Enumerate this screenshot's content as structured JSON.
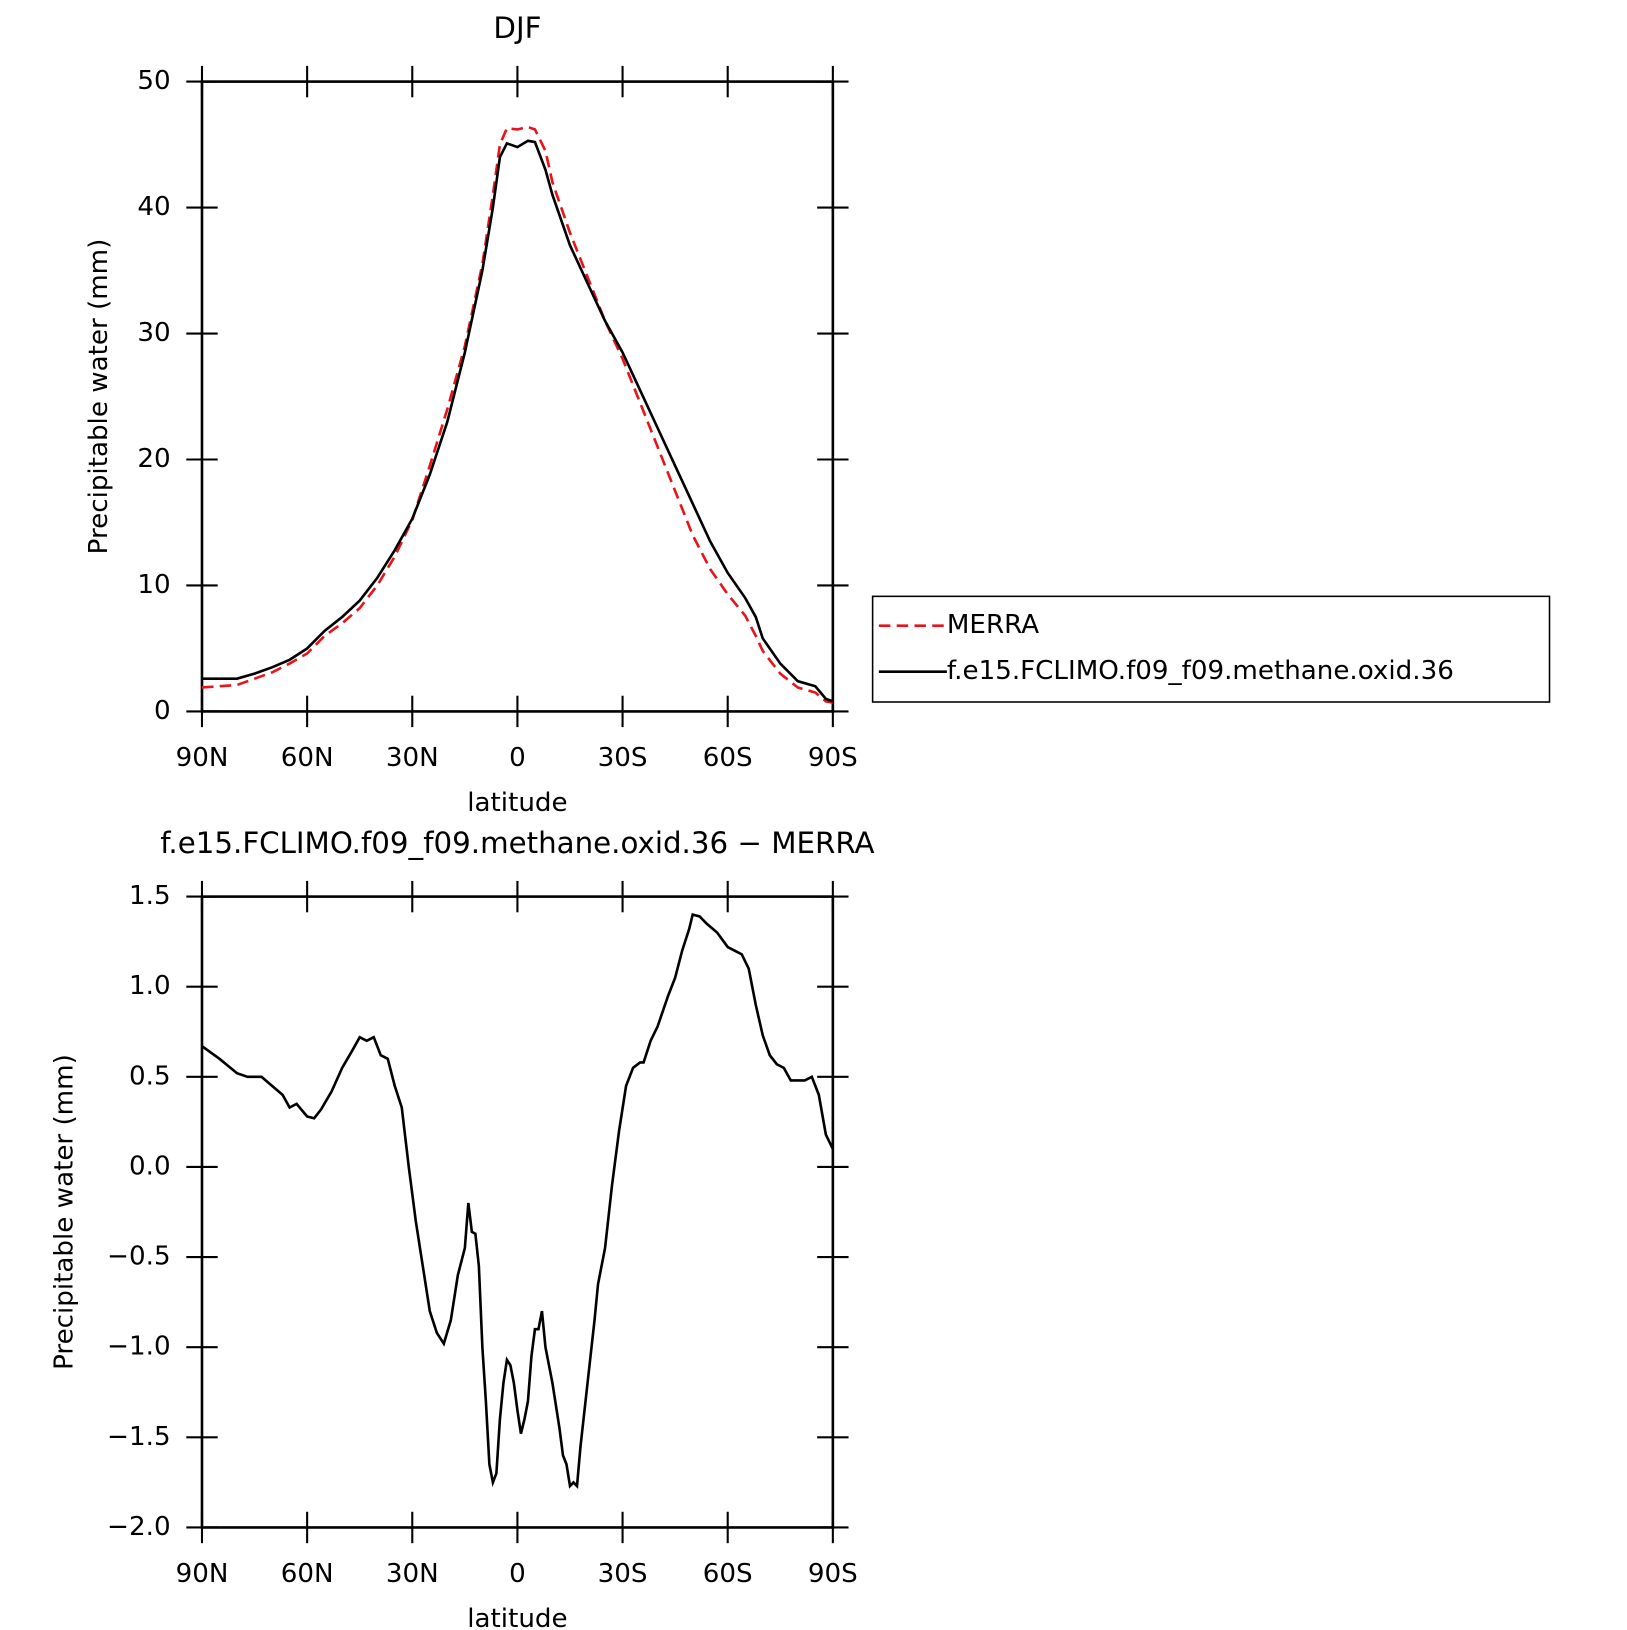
{
  "chart_data": [
    {
      "type": "line",
      "title": "DJF",
      "xlabel": "latitude",
      "ylabel": "Precipitable water (mm)",
      "x": [
        90,
        85,
        80,
        75,
        70,
        65,
        60,
        55,
        50,
        45,
        40,
        35,
        30,
        25,
        20,
        15,
        10,
        7,
        5,
        3,
        0,
        -3,
        -5,
        -8,
        -10,
        -15,
        -20,
        -25,
        -30,
        -35,
        -40,
        -45,
        -50,
        -55,
        -60,
        -65,
        -68,
        -70,
        -75,
        -80,
        -85,
        -88,
        -90
      ],
      "series": [
        {
          "name": "MERRA",
          "color": "#e8141c",
          "linestyle": "dashed",
          "values": [
            1.9,
            2.0,
            2.1,
            2.6,
            3.1,
            3.8,
            4.6,
            6.0,
            7.0,
            8.2,
            10,
            12.3,
            15.2,
            19.5,
            24,
            29,
            35.5,
            41,
            45,
            46.3,
            46.2,
            46.4,
            46.2,
            44.5,
            42,
            38,
            34.5,
            31,
            28,
            24.5,
            21,
            17.5,
            14,
            11.3,
            9.3,
            7.6,
            6,
            4.8,
            3.0,
            1.9,
            1.5,
            0.8,
            0.7
          ]
        },
        {
          "name": "f.e15.FCLIMO.f09_f09.methane.oxid.36",
          "color": "#000000",
          "linestyle": "solid",
          "values": [
            2.6,
            2.6,
            2.6,
            3.0,
            3.5,
            4.1,
            5.0,
            6.4,
            7.5,
            8.8,
            10.6,
            12.8,
            15.3,
            18.8,
            23,
            28.5,
            35,
            40,
            44,
            45.1,
            44.8,
            45.3,
            45.2,
            43,
            41,
            37,
            34,
            31,
            28.5,
            25.5,
            22.5,
            19.5,
            16.5,
            13.5,
            11,
            9,
            7.5,
            5.8,
            3.8,
            2.4,
            2.0,
            1.0,
            0.8
          ]
        }
      ],
      "xlim": [
        90,
        -90
      ],
      "xticks": [
        {
          "value": 90,
          "label": "90N"
        },
        {
          "value": 60,
          "label": "60N"
        },
        {
          "value": 30,
          "label": "30N"
        },
        0,
        {
          "value": -30,
          "label": "30S"
        },
        {
          "value": -60,
          "label": "60S"
        },
        {
          "value": -90,
          "label": "90S"
        }
      ],
      "ylim": [
        0,
        50
      ],
      "yticks": [
        0,
        10,
        20,
        30,
        40,
        50
      ],
      "legend": "right"
    },
    {
      "type": "line",
      "title": "f.e15.FCLIMO.f09_f09.methane.oxid.36 − MERRA",
      "xlabel": "latitude",
      "ylabel": "Precipitable water (mm)",
      "x": [
        90,
        85,
        80,
        77,
        73,
        70,
        67,
        65,
        63,
        60,
        58,
        56,
        53,
        50,
        47,
        45,
        43,
        41,
        39,
        37,
        35,
        33,
        31,
        29,
        27,
        25,
        23,
        21,
        19,
        17,
        15,
        14,
        13,
        12,
        11,
        10,
        9,
        8,
        7,
        6,
        5,
        4,
        3,
        2,
        1,
        0,
        -1,
        -2,
        -3,
        -4,
        -5,
        -6,
        -7,
        -8,
        -10,
        -12,
        -13,
        -14,
        -15,
        -16,
        -17,
        -18,
        -20,
        -22,
        -23,
        -25,
        -27,
        -29,
        -31,
        -33,
        -35,
        -36,
        -38,
        -40,
        -43,
        -45,
        -47,
        -49,
        -50,
        -52,
        -54,
        -57,
        -60,
        -62,
        -64,
        -66,
        -68,
        -70,
        -72,
        -74,
        -76,
        -78,
        -80,
        -82,
        -84,
        -86,
        -88,
        -90
      ],
      "values": [
        0.67,
        0.6,
        0.52,
        0.5,
        0.5,
        0.45,
        0.4,
        0.33,
        0.35,
        0.28,
        0.27,
        0.32,
        0.42,
        0.55,
        0.65,
        0.72,
        0.7,
        0.72,
        0.62,
        0.6,
        0.45,
        0.33,
        0.0,
        -0.3,
        -0.55,
        -0.8,
        -0.92,
        -0.98,
        -0.85,
        -0.6,
        -0.45,
        -0.2,
        -0.36,
        -0.37,
        -0.55,
        -1.0,
        -1.3,
        -1.65,
        -1.75,
        -1.7,
        -1.4,
        -1.2,
        -1.07,
        -1.1,
        -1.2,
        -1.35,
        -1.48,
        -1.4,
        -1.3,
        -1.05,
        -0.9,
        -0.9,
        -0.8,
        -1.0,
        -1.2,
        -1.45,
        -1.6,
        -1.65,
        -1.77,
        -1.75,
        -1.77,
        -1.55,
        -1.2,
        -0.85,
        -0.65,
        -0.45,
        -0.1,
        0.2,
        0.45,
        0.55,
        0.58,
        0.58,
        0.7,
        0.78,
        0.95,
        1.05,
        1.2,
        1.32,
        1.4,
        1.39,
        1.35,
        1.3,
        1.22,
        1.2,
        1.18,
        1.1,
        0.9,
        0.73,
        0.62,
        0.57,
        0.55,
        0.48,
        0.48,
        0.48,
        0.5,
        0.4,
        0.18,
        0.1
      ],
      "color": "#000000",
      "xlim": [
        90,
        -90
      ],
      "xticks": [
        {
          "value": 90,
          "label": "90N"
        },
        {
          "value": 60,
          "label": "60N"
        },
        {
          "value": 30,
          "label": "30N"
        },
        0,
        {
          "value": -30,
          "label": "30S"
        },
        {
          "value": -60,
          "label": "60S"
        },
        {
          "value": -90,
          "label": "90S"
        }
      ],
      "ylim": [
        -2,
        1.5
      ],
      "yticks": [
        {
          "value": -2,
          "label": "−2.0"
        },
        {
          "value": -1.5,
          "label": "−1.5"
        },
        {
          "value": -1,
          "label": "−1.0"
        },
        {
          "value": -0.5,
          "label": "−0.5"
        },
        {
          "value": 0,
          "label": "0.0"
        },
        0.5,
        {
          "value": 1,
          "label": "1.0"
        },
        1.5
      ]
    }
  ]
}
